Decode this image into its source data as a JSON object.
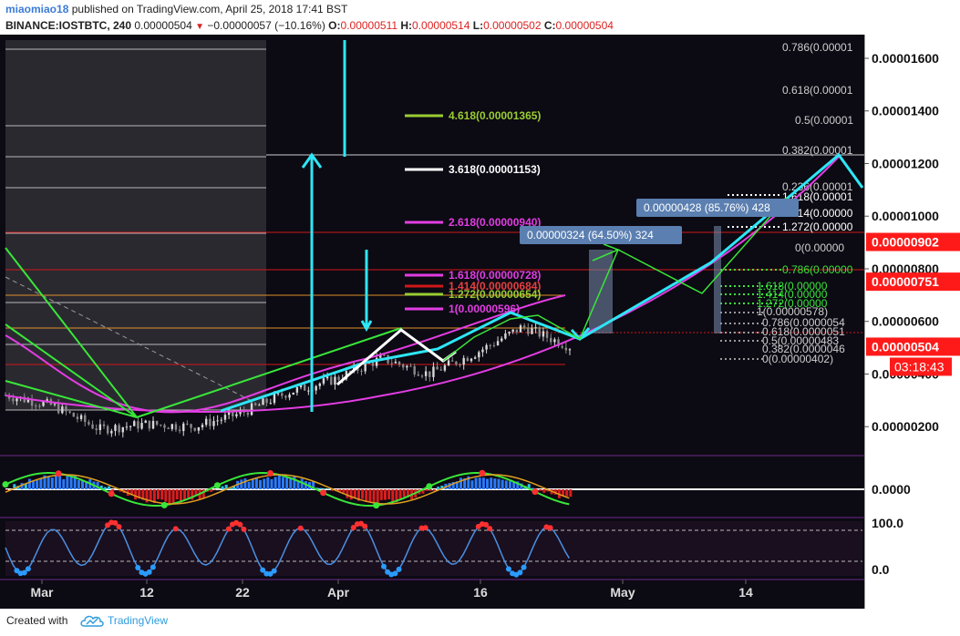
{
  "header": {
    "author": "miaomiao18",
    "published": "published on TradingView.com, April 25, 2018 17:41 BST",
    "symbol": "BINANCE:IOSTBTC, 240",
    "last": "0.00000504",
    "down_arrow": "▼",
    "change": "−0.00000057 (−10.16%)",
    "o_label": "O:",
    "o_value": "0.00000511",
    "h_label": "H:",
    "h_value": "0.00000514",
    "l_label": "L:",
    "l_value": "0.00000502",
    "c_label": "C:",
    "c_value": "0.00000504"
  },
  "footer": {
    "created_with": "Created with",
    "brand": "TradingView"
  },
  "colors": {
    "background": "#0c0a13",
    "cyan": "#2ee6f6",
    "magenta": "#e33de3",
    "green": "#39e639",
    "yellow_green": "#9acd32",
    "red_label": "#ff1a1a",
    "steel": "#5b7fb0",
    "orange": "#e0902a"
  },
  "chart_data": {
    "type": "candlestick",
    "title": "",
    "price_axis": {
      "ticks": [
        "0.00001600",
        "0.00001400",
        "0.00001200",
        "0.00001000",
        "0.00000800",
        "0.00000600",
        "0.00000400",
        "0.00000200"
      ],
      "ticks_values": [
        1.6e-05,
        1.4e-05,
        1.2e-05,
        1e-05,
        8e-06,
        6e-06,
        4e-06,
        2e-06
      ],
      "range": [
        9e-07,
        1.69e-05
      ],
      "highlight_labels": [
        {
          "text": "0.00000902",
          "value": 9.02e-06
        },
        {
          "text": "0.00000751",
          "value": 7.51e-06
        },
        {
          "text": "0.00000504",
          "value": 5.04e-06
        }
      ],
      "countdown": "03:18:43"
    },
    "time_axis": {
      "labels": [
        "Mar",
        "12",
        "22",
        "Apr",
        "16",
        "May",
        "14"
      ],
      "bold": [
        "Mar",
        "Apr",
        "May"
      ]
    },
    "price_series_approx": {
      "x_dates": [
        "Mar 1",
        "Mar 6",
        "Mar 11",
        "Mar 16",
        "Mar 21",
        "Mar 26",
        "Mar 31",
        "Apr 5",
        "Apr 10",
        "Apr 15",
        "Apr 20",
        "Apr 23",
        "Apr 25"
      ],
      "close": [
        3.2e-06,
        2.8e-06,
        1.9e-06,
        2.1e-06,
        2e-06,
        2.5e-06,
        3.3e-06,
        3.8e-06,
        4.6e-06,
        4e-06,
        4.8e-06,
        5.8e-06,
        5.04e-06
      ]
    },
    "fib_extension_labels": [
      {
        "text": "4.618(0.00001365)",
        "color": "yellow_green"
      },
      {
        "text": "3.618(0.00001153)",
        "color": "white"
      },
      {
        "text": "2.618(0.00000940)",
        "color": "magenta"
      },
      {
        "text": "1.618(0.00000728)",
        "color": "magenta"
      },
      {
        "text": "1.414(0.00000684)",
        "color": "red"
      },
      {
        "text": "1.272(0.00000654)",
        "color": "yellow_green"
      },
      {
        "text": "1(0.00000596)",
        "color": "magenta"
      }
    ],
    "fib_right_labels": [
      {
        "text": "0.786(0.00001",
        "color": "grey"
      },
      {
        "text": "0.618(0.00001",
        "color": "grey"
      },
      {
        "text": "0.5(0.00001",
        "color": "grey"
      },
      {
        "text": "0.382(0.00001",
        "color": "grey"
      },
      {
        "text": "0.236(0.00001",
        "color": "grey"
      },
      {
        "text": "1.618(0.00001",
        "color": "white"
      },
      {
        "text": "1.414(0.00000",
        "color": "white"
      },
      {
        "text": "1.272(0.00000",
        "color": "white"
      },
      {
        "text": "0(0.00000",
        "color": "grey"
      },
      {
        "text": "0.786(0.00000",
        "color": "green"
      },
      {
        "text": "1.618(0.00000",
        "color": "green"
      },
      {
        "text": "1.414(0.00000",
        "color": "green"
      },
      {
        "text": "1.272(0.00000",
        "color": "green"
      },
      {
        "text": "1(0.00000578)",
        "color": "grey"
      },
      {
        "text": "0.786(0.0000054",
        "color": "grey"
      },
      {
        "text": "0.618(0.0000051",
        "color": "grey"
      },
      {
        "text": "0.5(0.00000483",
        "color": "grey"
      },
      {
        "text": "0.382(0.0000046",
        "color": "grey"
      },
      {
        "text": "0(0.00000402)",
        "color": "grey"
      }
    ],
    "measure_boxes": [
      {
        "text": "0.00000324 (64.50%) 324"
      },
      {
        "text": "0.00000428 (85.76%) 428"
      }
    ],
    "macd_panel": {
      "axis_label": "0.0000"
    },
    "stoch_panel": {
      "axis_labels": [
        "100.0",
        "0.0"
      ]
    }
  }
}
